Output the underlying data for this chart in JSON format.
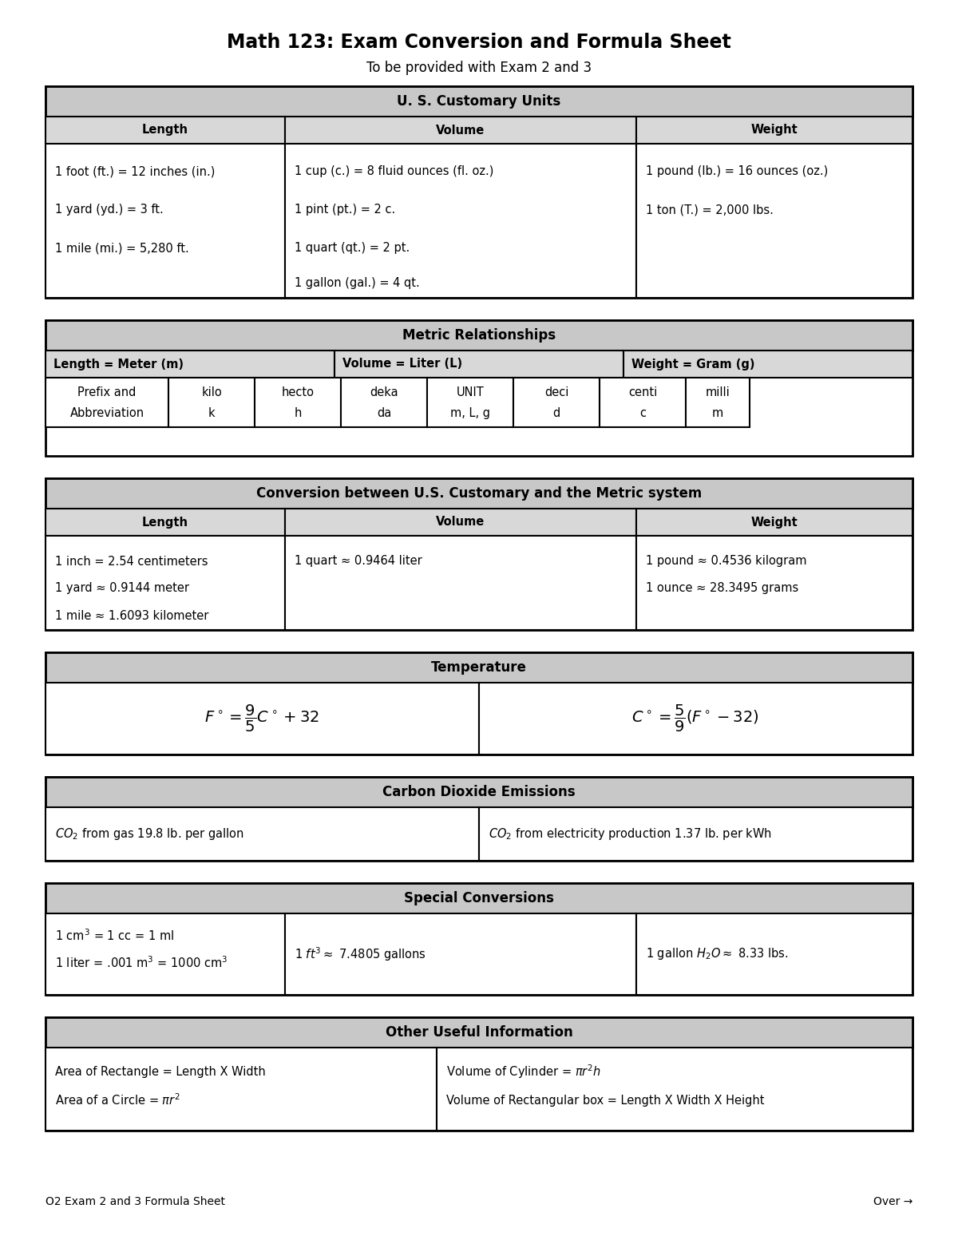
{
  "title": "Math 123: Exam Conversion and Formula Sheet",
  "subtitle": "To be provided with Exam 2 and 3",
  "footer_left": "O2 Exam 2 and 3 Formula Sheet",
  "footer_right": "Over →",
  "bg_color": "#ffffff",
  "header_bg": "#c8c8c8",
  "subheader_bg": "#d8d8d8",
  "border_color": "#000000",
  "title_fontsize": 17,
  "subtitle_fontsize": 12,
  "header_fontsize": 12,
  "cell_fontsize": 10.5,
  "footer_fontsize": 10
}
